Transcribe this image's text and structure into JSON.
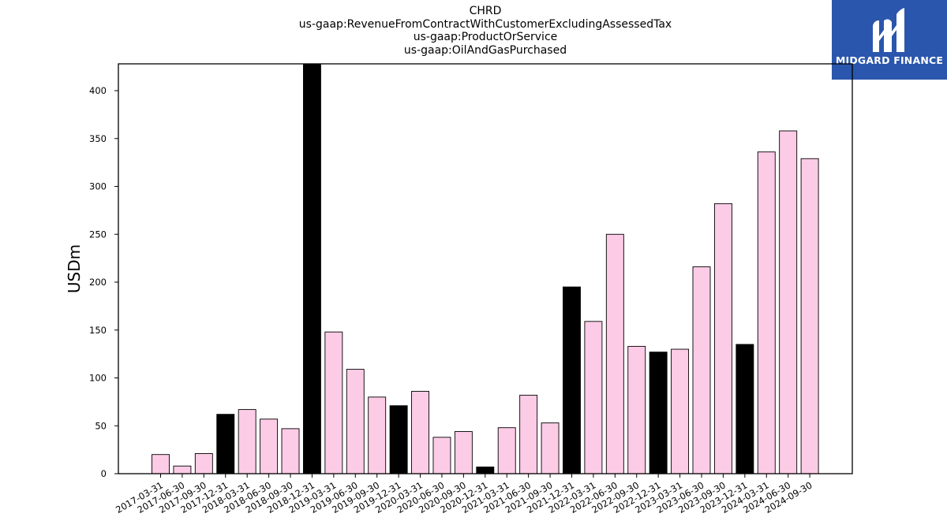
{
  "title_lines": [
    "CHRD",
    "us-gaap:RevenueFromContractWithCustomerExcludingAssessedTax",
    "us-gaap:ProductOrService",
    "us-gaap:OilAndGasPurchased"
  ],
  "logo": {
    "text": "MIDGARD FINANCE",
    "color": "#2b56ad"
  },
  "colors": {
    "bar_default": "#fccbe6",
    "bar_highlight": "#000000",
    "edge": "#000000"
  },
  "chart_data": {
    "type": "bar",
    "title": "CHRD\nus-gaap:RevenueFromContractWithCustomerExcludingAssessedTax\nus-gaap:ProductOrService\nus-gaap:OilAndGasPurchased",
    "xlabel": "",
    "ylabel": "USDm",
    "ylim": [
      0,
      428
    ],
    "yticks": [
      0,
      50,
      100,
      150,
      200,
      250,
      300,
      350,
      400
    ],
    "grid": false,
    "categories": [
      "2017-03-31",
      "2017-06-30",
      "2017-09-30",
      "2017-12-31",
      "2018-03-31",
      "2018-06-30",
      "2018-09-30",
      "2018-12-31",
      "2019-03-31",
      "2019-06-30",
      "2019-09-30",
      "2019-12-31",
      "2020-03-31",
      "2020-06-30",
      "2020-09-30",
      "2020-12-31",
      "2021-03-31",
      "2021-06-30",
      "2021-09-30",
      "2021-12-31",
      "2022-03-31",
      "2022-06-30",
      "2022-09-30",
      "2022-12-31",
      "2023-03-31",
      "2023-06-30",
      "2023-09-30",
      "2023-12-31",
      "2024-03-31",
      "2024-06-30",
      "2024-09-30"
    ],
    "values": [
      20,
      8,
      21,
      62,
      67,
      57,
      47,
      430,
      148,
      109,
      80,
      71,
      86,
      38,
      44,
      7,
      48,
      82,
      53,
      195,
      159,
      250,
      133,
      127,
      130,
      216,
      282,
      135,
      336,
      358,
      329
    ],
    "highlight": [
      false,
      false,
      false,
      true,
      false,
      false,
      false,
      true,
      false,
      false,
      false,
      true,
      false,
      false,
      false,
      true,
      false,
      false,
      false,
      true,
      false,
      false,
      false,
      true,
      false,
      false,
      false,
      true,
      false,
      false,
      false
    ]
  }
}
